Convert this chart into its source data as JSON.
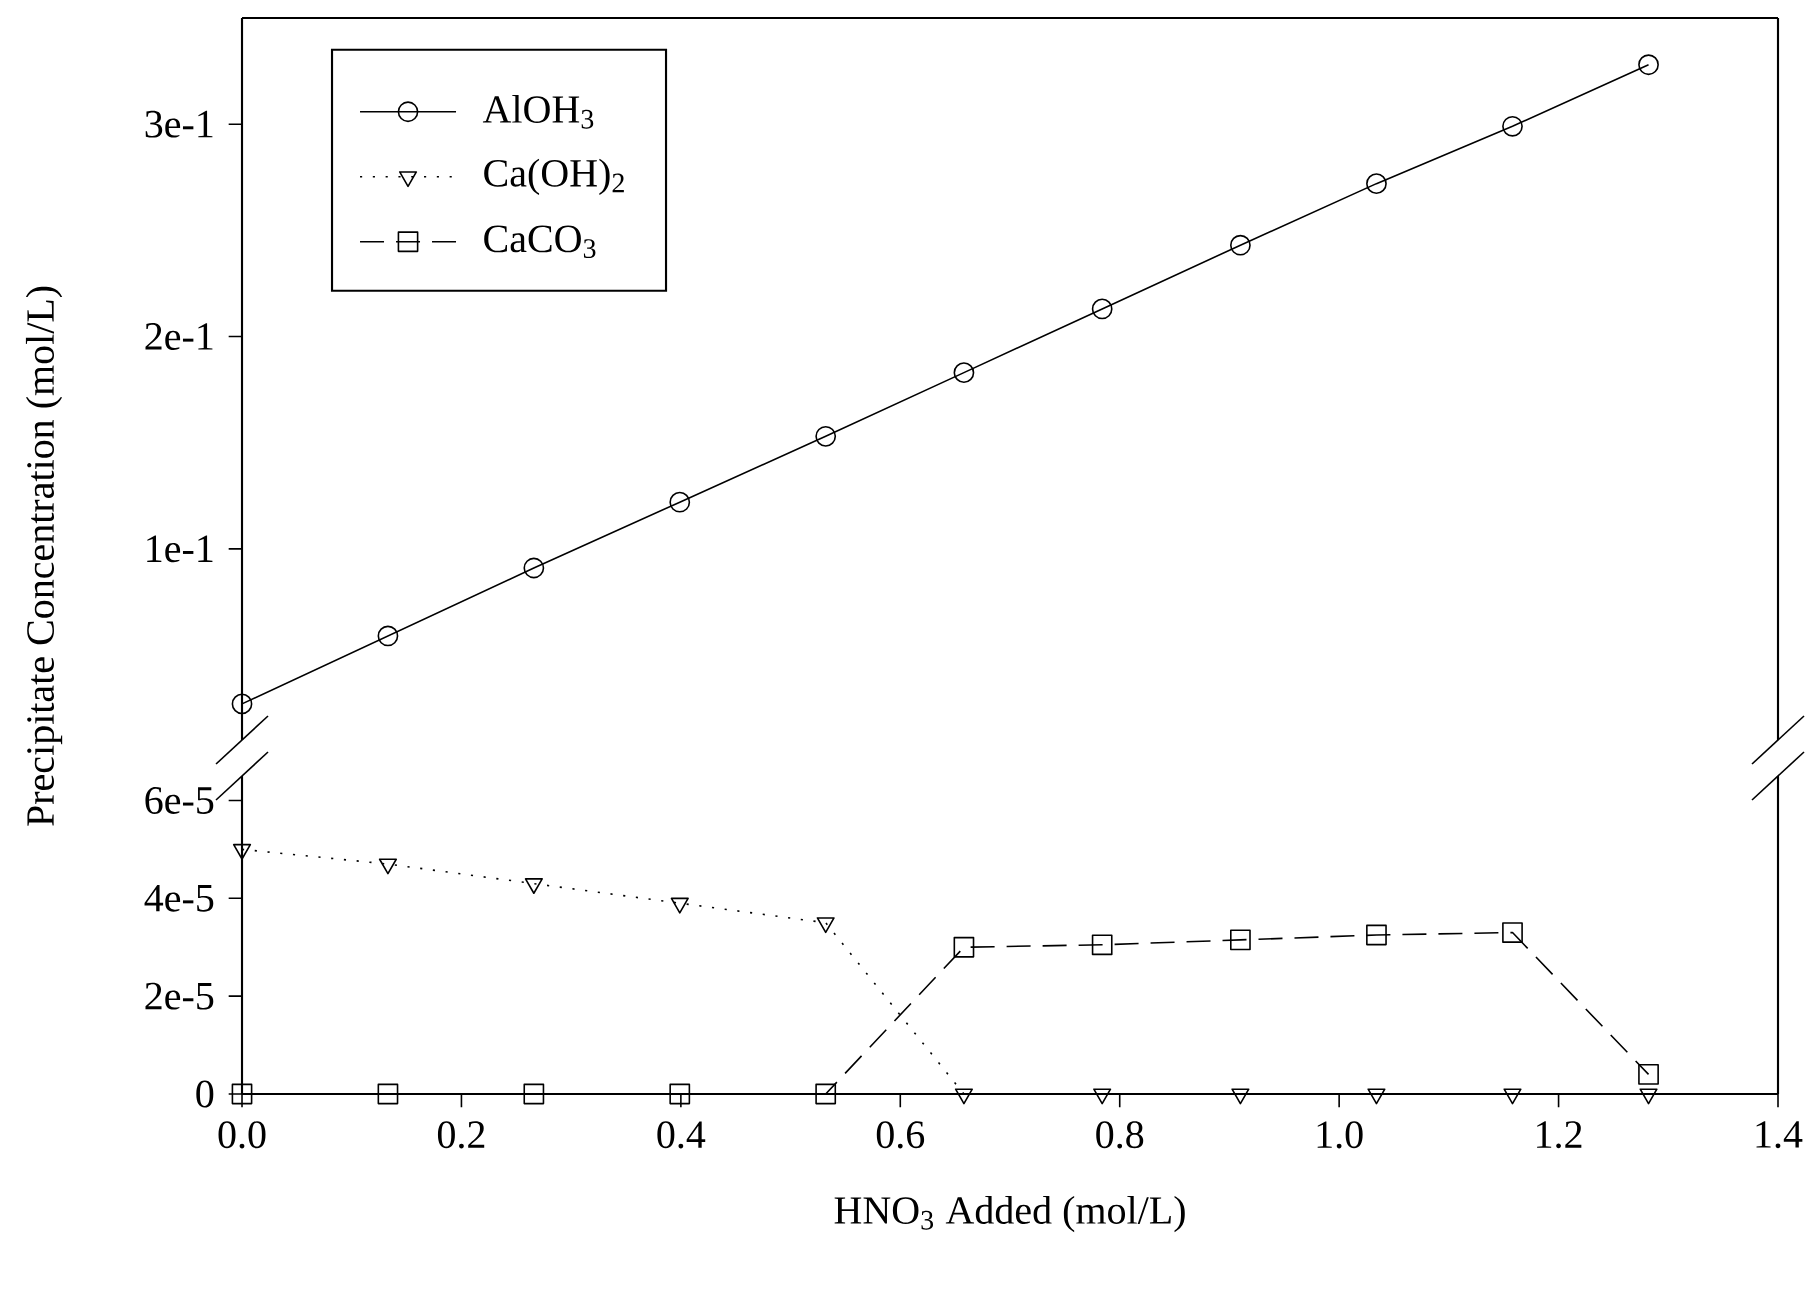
{
  "chart_data": [
    {
      "type": "line",
      "ylabel": "Precipitate Concentration (mol/L)",
      "xlim": [
        0,
        1.4
      ],
      "ylim": [
        0.01,
        0.35
      ],
      "yticks": [
        {
          "value": 0.1,
          "label": "1e-1"
        },
        {
          "value": 0.2,
          "label": "2e-1"
        },
        {
          "value": 0.3,
          "label": "3e-1"
        }
      ],
      "tick_labels": "y",
      "legend": "top left",
      "grid": false,
      "x": [
        0,
        0.133,
        0.266,
        0.399,
        0.532,
        0.658,
        0.784,
        0.91,
        1.034,
        1.158,
        1.282
      ],
      "series": [
        {
          "name": "AlOH$_{3}$",
          "color": "#000000",
          "marker": "circle",
          "line_style": "solid",
          "values": [
            0.027,
            0.059,
            0.091,
            0.122,
            0.153,
            0.183,
            0.213,
            0.243,
            0.272,
            0.299,
            0.328
          ]
        }
      ]
    },
    {
      "type": "line",
      "xlabel": "HNO$_{3}$ Added (mol/L)",
      "legend": "top left",
      "xlim": [
        0,
        1.4
      ],
      "ylim": [
        0,
        6.5e-05
      ],
      "xticks": [
        {
          "value": 0,
          "label": "0.0"
        },
        0.2,
        0.4,
        0.6,
        0.8,
        {
          "value": 1.0,
          "label": "1.0"
        },
        1.2,
        1.4
      ],
      "yticks": [
        0,
        {
          "value": 2e-05,
          "label": "2e-5"
        },
        {
          "value": 4e-05,
          "label": "4e-5"
        },
        {
          "value": 6e-05,
          "label": "6e-5"
        }
      ],
      "grid": false,
      "x": [
        0,
        0.133,
        0.266,
        0.399,
        0.532,
        0.658,
        0.784,
        0.91,
        1.034,
        1.158,
        1.282
      ],
      "series": [
        {
          "name": "Ca(OH)$_{2}$",
          "color": "#000000",
          "marker": "triangle",
          "line_style": "dotted",
          "values": [
            5e-05,
            4.7e-05,
            4.3e-05,
            3.9e-05,
            3.5e-05,
            0,
            0,
            0,
            0,
            0,
            0
          ]
        },
        {
          "name": "CaCO$_{3}$",
          "color": "#000000",
          "marker": "square",
          "line_style": "dashed",
          "values": [
            0,
            0,
            0,
            0,
            0,
            3e-05,
            3.05e-05,
            3.15e-05,
            3.25e-05,
            3.3e-05,
            4e-06
          ]
        }
      ]
    }
  ]
}
